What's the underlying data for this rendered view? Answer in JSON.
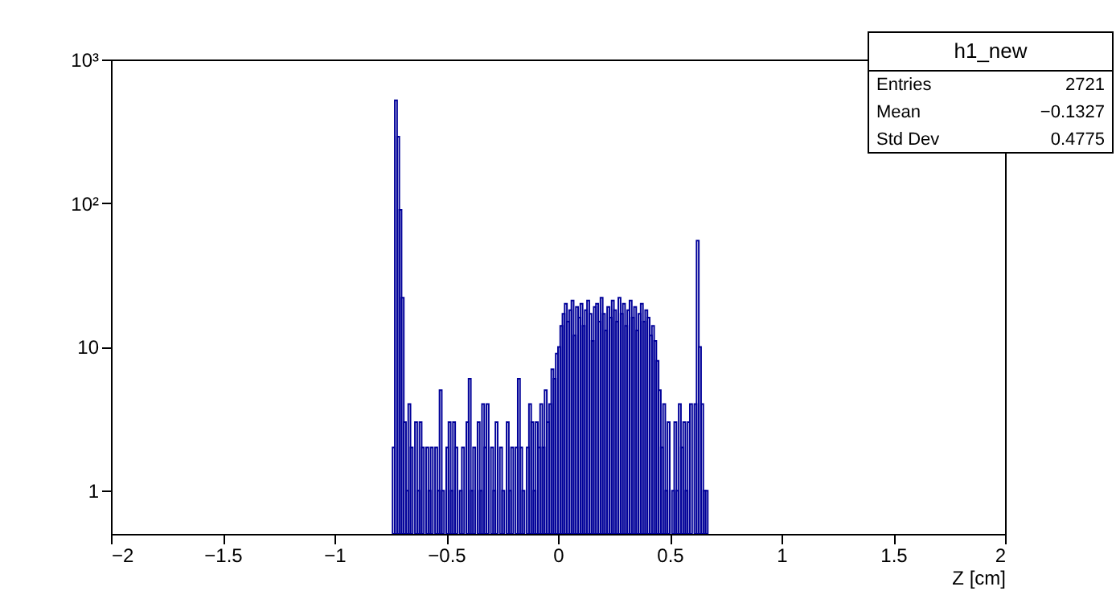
{
  "chart_data": {
    "type": "histogram",
    "xlabel": "Z [cm]",
    "bins": [
      -0.75,
      -0.74,
      -0.73,
      -0.72,
      -0.71,
      -0.7,
      -0.69,
      -0.68,
      -0.67,
      -0.66,
      -0.65,
      -0.64,
      -0.63,
      -0.62,
      -0.61,
      -0.6,
      -0.59,
      -0.58,
      -0.57,
      -0.56,
      -0.55,
      -0.54,
      -0.53,
      -0.52,
      -0.51,
      -0.5,
      -0.49,
      -0.48,
      -0.47,
      -0.46,
      -0.45,
      -0.44,
      -0.43,
      -0.42,
      -0.41,
      -0.4,
      -0.39,
      -0.38,
      -0.37,
      -0.36,
      -0.35,
      -0.34,
      -0.33,
      -0.32,
      -0.31,
      -0.3,
      -0.29,
      -0.28,
      -0.27,
      -0.26,
      -0.25,
      -0.24,
      -0.23,
      -0.22,
      -0.21,
      -0.2,
      -0.19,
      -0.18,
      -0.17,
      -0.16,
      -0.15,
      -0.14,
      -0.13,
      -0.12,
      -0.11,
      -0.1,
      -0.09,
      -0.08,
      -0.07,
      -0.06,
      -0.05,
      -0.04,
      -0.03,
      -0.02,
      -0.01,
      0.0,
      0.01,
      0.02,
      0.03,
      0.04,
      0.05,
      0.06,
      0.07,
      0.08,
      0.09,
      0.1,
      0.11,
      0.12,
      0.13,
      0.14,
      0.15,
      0.16,
      0.17,
      0.18,
      0.19,
      0.2,
      0.21,
      0.22,
      0.23,
      0.24,
      0.25,
      0.26,
      0.27,
      0.28,
      0.29,
      0.3,
      0.31,
      0.32,
      0.33,
      0.34,
      0.35,
      0.36,
      0.37,
      0.38,
      0.39,
      0.4,
      0.41,
      0.42,
      0.43,
      0.44,
      0.45,
      0.46,
      0.47,
      0.48,
      0.49,
      0.5,
      0.51,
      0.52,
      0.53,
      0.54,
      0.55,
      0.56,
      0.57,
      0.58,
      0.59,
      0.6,
      0.61,
      0.62,
      0.63,
      0.64,
      0.65,
      0.66,
      0.67
    ],
    "values": [
      null,
      2,
      520,
      290,
      90,
      22,
      3,
      1,
      4,
      2,
      null,
      3,
      1,
      3,
      2,
      null,
      2,
      1,
      2,
      null,
      2,
      1,
      5,
      1,
      null,
      2,
      3,
      1,
      3,
      2,
      null,
      1,
      2,
      null,
      3,
      6,
      1,
      2,
      null,
      3,
      1,
      4,
      2,
      4,
      null,
      2,
      1,
      3,
      null,
      2,
      1,
      null,
      3,
      1,
      2,
      null,
      2,
      6,
      2,
      1,
      null,
      2,
      4,
      3,
      1,
      3,
      2,
      4,
      2,
      5,
      3,
      4,
      7,
      6,
      9,
      10,
      14,
      17,
      20,
      15,
      18,
      21,
      12,
      19,
      16,
      20,
      14,
      18,
      21,
      17,
      11,
      19,
      20,
      15,
      22,
      17,
      13,
      19,
      16,
      21,
      18,
      15,
      22,
      17,
      20,
      14,
      18,
      21,
      16,
      19,
      13,
      17,
      20,
      15,
      18,
      16,
      12,
      14,
      11,
      8,
      5,
      2,
      4,
      1,
      3,
      null,
      1,
      3,
      1,
      4,
      2,
      3,
      1,
      3,
      4,
      null,
      4,
      55,
      10,
      4,
      1,
      1
    ],
    "color": "#000099",
    "log": true,
    "xlim": [
      -2,
      2
    ],
    "xticks": [
      {
        "value": -2,
        "label": "−2"
      },
      {
        "value": -1.5,
        "label": "−1.5"
      },
      {
        "value": -1,
        "label": "−1"
      },
      {
        "value": -0.5,
        "label": "−0.5"
      },
      0,
      0.5,
      1,
      1.5,
      2
    ],
    "ylim": [
      0.5,
      1000
    ],
    "yticks": [
      1,
      10,
      {
        "value": 100,
        "label": "10²"
      },
      {
        "value": 1000,
        "label": "10³"
      }
    ],
    "grid": false,
    "annotations": [
      "h1_new",
      "Entries",
      "2721",
      "Mean",
      "−0.1327",
      "Std Dev",
      "0.4775"
    ]
  }
}
